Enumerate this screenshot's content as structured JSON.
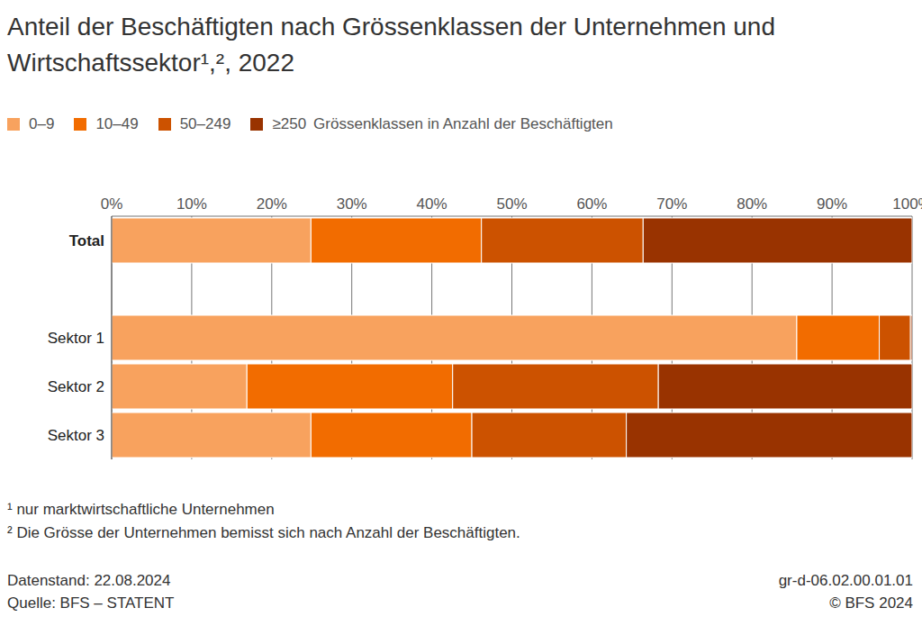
{
  "chart_data": {
    "type": "bar",
    "title": "Anteil der Beschäftigten nach Grössenklassen der Unternehmen und Wirtschaftssektor¹,², 2022",
    "orientation": "horizontal",
    "stacked": true,
    "grid": true,
    "legend": "top",
    "legend_title": "Grössenklassen in Anzahl der Beschäftigten",
    "categories": [
      "Total",
      null,
      "Sektor 1",
      "Sektor 2",
      "Sektor 3"
    ],
    "series": [
      {
        "name": "0–9",
        "color": "#f8a25e",
        "values": [
          24.9,
          null,
          85.6,
          16.9,
          24.9
        ]
      },
      {
        "name": "10–49",
        "color": "#f26c00",
        "values": [
          21.3,
          null,
          10.3,
          25.7,
          20.1
        ]
      },
      {
        "name": "50–249",
        "color": "#cc5200",
        "values": [
          20.2,
          null,
          3.9,
          25.7,
          19.3
        ]
      },
      {
        "name": "≥250",
        "color": "#993300",
        "values": [
          33.6,
          null,
          0.2,
          31.7,
          35.7
        ]
      }
    ],
    "xlim": [
      0,
      100
    ],
    "xticks": [
      {
        "value": 0,
        "label": "0%"
      },
      {
        "value": 10,
        "label": "10%"
      },
      {
        "value": 20,
        "label": "20%"
      },
      {
        "value": 30,
        "label": "30%"
      },
      {
        "value": 40,
        "label": "40%"
      },
      {
        "value": 50,
        "label": "50%"
      },
      {
        "value": 60,
        "label": "60%"
      },
      {
        "value": 70,
        "label": "70%"
      },
      {
        "value": 80,
        "label": "80%"
      },
      {
        "value": 90,
        "label": "90%"
      },
      {
        "value": 100,
        "label": "100%"
      }
    ],
    "notes": [
      "¹ nur marktwirtschaftliche Unternehmen",
      "² Die Grösse der Unternehmen bemisst sich nach Anzahl der Beschäftigten."
    ],
    "data_status": "Datenstand: 22.08.2024",
    "source": "Quelle: BFS – STATENT",
    "id": "gr-d-06.02.00.01.01",
    "copyright": "© BFS 2024"
  }
}
